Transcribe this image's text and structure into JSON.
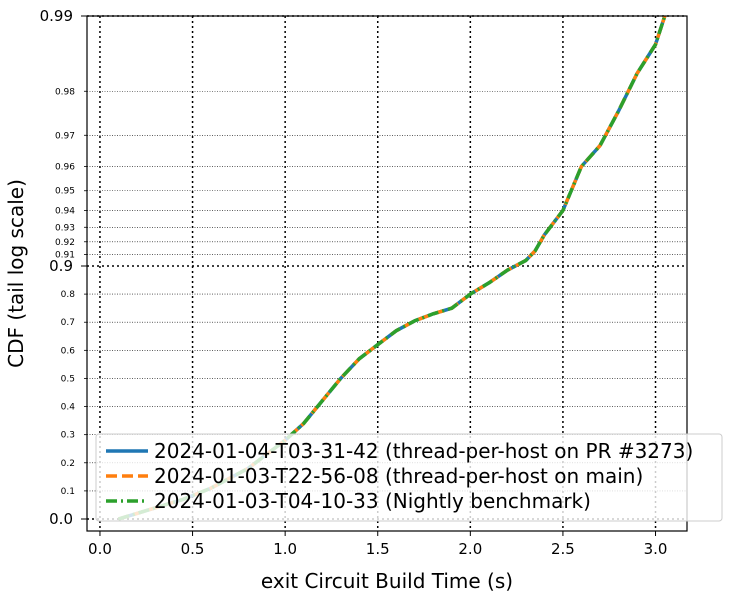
{
  "chart_data": {
    "type": "line",
    "title": "",
    "xlabel": "exit Circuit Build Time (s)",
    "ylabel": "CDF (tail log scale)",
    "xlim": [
      -0.07,
      3.17
    ],
    "x_ticks": [
      "0.0",
      "0.5",
      "1.0",
      "1.5",
      "2.0",
      "2.5",
      "3.0"
    ],
    "x_tick_values": [
      0.0,
      0.5,
      1.0,
      1.5,
      2.0,
      2.5,
      3.0
    ],
    "y_scale": "tail log",
    "y_major_ticks": [
      {
        "value": 0.0,
        "label": "0.0"
      },
      {
        "value": 0.9,
        "label": "0.9"
      },
      {
        "value": 0.99,
        "label": "0.99"
      }
    ],
    "y_minor_ticks": [
      {
        "value": 0.1,
        "label": "0.1"
      },
      {
        "value": 0.2,
        "label": "0.2"
      },
      {
        "value": 0.3,
        "label": "0.3"
      },
      {
        "value": 0.4,
        "label": "0.4"
      },
      {
        "value": 0.5,
        "label": "0.5"
      },
      {
        "value": 0.6,
        "label": "0.6"
      },
      {
        "value": 0.7,
        "label": "0.7"
      },
      {
        "value": 0.8,
        "label": "0.8"
      },
      {
        "value": 0.91,
        "label": "0.91"
      },
      {
        "value": 0.92,
        "label": "0.92"
      },
      {
        "value": 0.93,
        "label": "0.93"
      },
      {
        "value": 0.94,
        "label": "0.94"
      },
      {
        "value": 0.95,
        "label": "0.95"
      },
      {
        "value": 0.96,
        "label": "0.96"
      },
      {
        "value": 0.97,
        "label": "0.97"
      },
      {
        "value": 0.98,
        "label": "0.98"
      }
    ],
    "grid": true,
    "legend_position": "bottom-right",
    "series": [
      {
        "name": "2024-01-04-T03-31-42 (thread-per-host on PR #3273)",
        "color": "#1f77b4",
        "style": "solid",
        "points": [
          [
            0.1,
            0.0
          ],
          [
            0.2,
            0.02
          ],
          [
            0.3,
            0.04
          ],
          [
            0.45,
            0.07
          ],
          [
            0.6,
            0.11
          ],
          [
            0.8,
            0.18
          ],
          [
            1.0,
            0.28
          ],
          [
            1.1,
            0.34
          ],
          [
            1.2,
            0.42
          ],
          [
            1.3,
            0.5
          ],
          [
            1.4,
            0.57
          ],
          [
            1.5,
            0.62
          ],
          [
            1.6,
            0.67
          ],
          [
            1.7,
            0.705
          ],
          [
            1.8,
            0.73
          ],
          [
            1.9,
            0.75
          ],
          [
            2.0,
            0.8
          ],
          [
            2.1,
            0.84
          ],
          [
            2.2,
            0.885
          ],
          [
            2.3,
            0.905
          ],
          [
            2.35,
            0.913
          ],
          [
            2.4,
            0.925
          ],
          [
            2.5,
            0.94
          ],
          [
            2.6,
            0.96
          ],
          [
            2.7,
            0.967
          ],
          [
            2.8,
            0.976
          ],
          [
            2.9,
            0.983
          ],
          [
            3.0,
            0.987
          ],
          [
            3.05,
            0.99
          ]
        ]
      },
      {
        "name": "2024-01-03-T22-56-08 (thread-per-host on main)",
        "color": "#ff7f0e",
        "style": "dashed",
        "points": [
          [
            0.1,
            0.0
          ],
          [
            0.2,
            0.02
          ],
          [
            0.3,
            0.04
          ],
          [
            0.45,
            0.07
          ],
          [
            0.6,
            0.11
          ],
          [
            0.8,
            0.18
          ],
          [
            1.0,
            0.28
          ],
          [
            1.1,
            0.34
          ],
          [
            1.2,
            0.42
          ],
          [
            1.3,
            0.5
          ],
          [
            1.4,
            0.57
          ],
          [
            1.5,
            0.62
          ],
          [
            1.6,
            0.67
          ],
          [
            1.7,
            0.705
          ],
          [
            1.8,
            0.73
          ],
          [
            1.9,
            0.75
          ],
          [
            2.0,
            0.8
          ],
          [
            2.1,
            0.84
          ],
          [
            2.2,
            0.885
          ],
          [
            2.3,
            0.905
          ],
          [
            2.35,
            0.913
          ],
          [
            2.4,
            0.925
          ],
          [
            2.5,
            0.94
          ],
          [
            2.6,
            0.96
          ],
          [
            2.7,
            0.967
          ],
          [
            2.8,
            0.976
          ],
          [
            2.9,
            0.983
          ],
          [
            3.0,
            0.987
          ],
          [
            3.05,
            0.99
          ]
        ]
      },
      {
        "name": "2024-01-03-T04-10-33 (Nightly benchmark)",
        "color": "#2ca02c",
        "style": "dashdot",
        "points": [
          [
            0.1,
            0.0
          ],
          [
            0.2,
            0.02
          ],
          [
            0.3,
            0.04
          ],
          [
            0.45,
            0.07
          ],
          [
            0.6,
            0.11
          ],
          [
            0.8,
            0.18
          ],
          [
            1.0,
            0.28
          ],
          [
            1.1,
            0.34
          ],
          [
            1.2,
            0.42
          ],
          [
            1.3,
            0.5
          ],
          [
            1.4,
            0.57
          ],
          [
            1.5,
            0.62
          ],
          [
            1.6,
            0.67
          ],
          [
            1.7,
            0.705
          ],
          [
            1.8,
            0.73
          ],
          [
            1.9,
            0.75
          ],
          [
            2.0,
            0.8
          ],
          [
            2.1,
            0.84
          ],
          [
            2.2,
            0.885
          ],
          [
            2.3,
            0.905
          ],
          [
            2.35,
            0.913
          ],
          [
            2.4,
            0.925
          ],
          [
            2.5,
            0.94
          ],
          [
            2.6,
            0.96
          ],
          [
            2.7,
            0.967
          ],
          [
            2.8,
            0.976
          ],
          [
            2.9,
            0.983
          ],
          [
            3.0,
            0.987
          ],
          [
            3.05,
            0.99
          ]
        ]
      }
    ]
  }
}
